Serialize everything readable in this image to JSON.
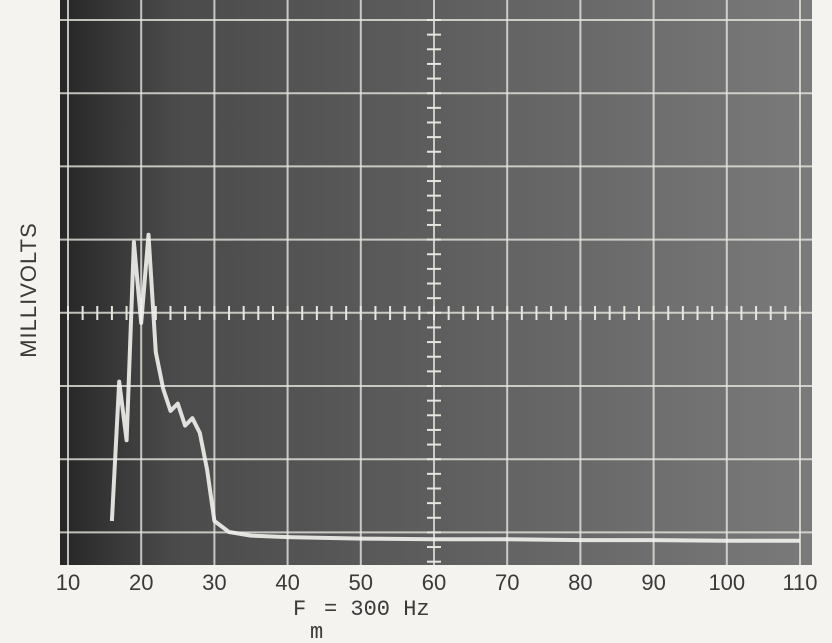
{
  "chart_data": {
    "type": "line",
    "y_label": "MILLIVOLTS",
    "annotation": {
      "symbol": "F",
      "subscript": "m",
      "rest": "= 300 Hz"
    },
    "x": [
      16,
      17,
      18,
      19,
      20,
      21,
      22,
      23,
      24,
      25,
      26,
      27,
      28,
      29,
      30,
      32,
      35,
      40,
      50,
      60,
      70,
      80,
      90,
      100,
      110
    ],
    "values": [
      0.3,
      2.2,
      1.4,
      4.1,
      3.0,
      4.2,
      2.6,
      2.1,
      1.8,
      1.9,
      1.6,
      1.7,
      1.5,
      1.0,
      0.3,
      0.15,
      0.1,
      0.08,
      0.06,
      0.05,
      0.05,
      0.04,
      0.04,
      0.03,
      0.03
    ],
    "color": "#f2f2ee",
    "xlim": [
      10,
      110
    ],
    "xticks": [
      10,
      20,
      30,
      40,
      50,
      60,
      70,
      80,
      90,
      100,
      110
    ],
    "ylim": [
      -0.3,
      7.4
    ]
  }
}
